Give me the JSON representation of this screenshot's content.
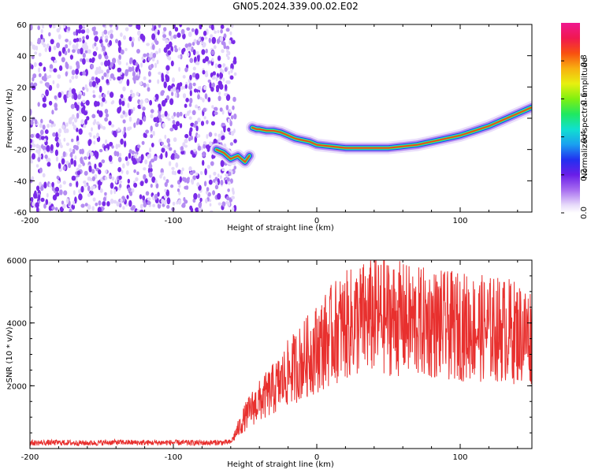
{
  "title": "GN05.2024.339.00.02.E02",
  "chart_data": [
    {
      "type": "heatmap",
      "xlabel": "Height of straight line (km)",
      "ylabel": "Frequency (Hz)",
      "xlim": [
        -200,
        150
      ],
      "ylim": [
        -60,
        60
      ],
      "xticks": [
        -200,
        -100,
        0,
        100
      ],
      "yticks": [
        -60,
        -40,
        -20,
        0,
        20,
        40,
        60
      ],
      "colorbar": {
        "label": "Normalized spectral amplitude",
        "range": [
          0.0,
          1.0
        ],
        "ticks": [
          0.0,
          0.2,
          0.4,
          0.6,
          0.8
        ],
        "tick_labels": [
          "0.0",
          "0.2",
          "0.4",
          "0.6",
          "0.8"
        ]
      },
      "noise_region_x": [
        -200,
        -60
      ],
      "ridge": {
        "x": [
          -70,
          -65,
          -60,
          -55,
          -50,
          -47,
          -45,
          -42,
          -40,
          -35,
          -30,
          -25,
          -20,
          -15,
          -10,
          -5,
          0,
          10,
          20,
          30,
          40,
          50,
          60,
          70,
          80,
          90,
          100,
          110,
          120,
          130,
          140,
          150
        ],
        "y": [
          -20,
          -22,
          -26,
          -24,
          -28,
          -24,
          -6,
          -7,
          -7,
          -8,
          -8,
          -9,
          -11,
          -13,
          -14,
          -15,
          -17,
          -18,
          -19,
          -19,
          -19,
          -19,
          -18,
          -17,
          -15,
          -13,
          -11,
          -8,
          -5,
          -1,
          3,
          7
        ]
      }
    },
    {
      "type": "line",
      "xlabel": "Height of straight line (km)",
      "ylabel": "SNR (10 * v/v)",
      "xlim": [
        -200,
        150
      ],
      "ylim": [
        0,
        6000
      ],
      "xticks": [
        -200,
        -100,
        0,
        100
      ],
      "yticks": [
        2000,
        4000,
        6000
      ],
      "series": [
        {
          "color": "#e8302e",
          "x": [
            -200,
            -180,
            -160,
            -140,
            -120,
            -100,
            -80,
            -60,
            -55,
            -50,
            -45,
            -40,
            -35,
            -30,
            -25,
            -20,
            -15,
            -10,
            -5,
            0,
            5,
            10,
            15,
            20,
            25,
            30,
            40,
            50,
            60,
            70,
            80,
            90,
            100,
            110,
            120,
            130,
            140,
            150
          ],
          "y": [
            180,
            190,
            175,
            200,
            185,
            190,
            180,
            200,
            600,
            1000,
            1300,
            1500,
            1700,
            1900,
            2100,
            2400,
            2600,
            2800,
            3000,
            3200,
            3400,
            3600,
            3800,
            3900,
            4000,
            4100,
            4200,
            4200,
            4100,
            4000,
            4000,
            3900,
            3900,
            3850,
            3800,
            3800,
            3700,
            3600
          ]
        }
      ]
    }
  ]
}
